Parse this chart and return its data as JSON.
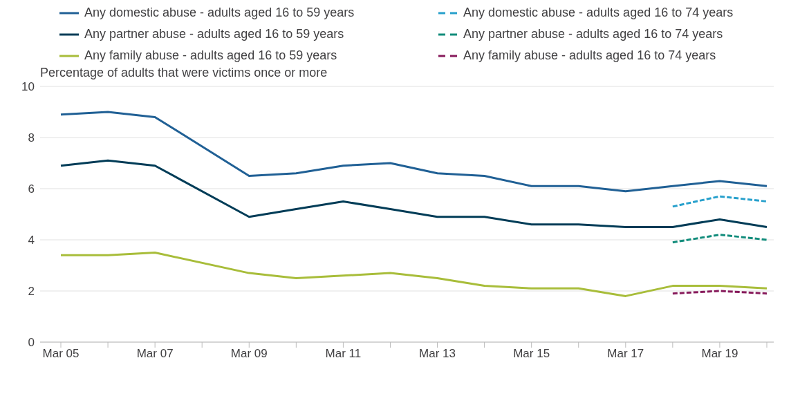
{
  "chart_data": {
    "type": "line",
    "ylabel": "Percentage of adults that were victims once or more",
    "categories": [
      "Mar 05",
      null,
      "Mar 07",
      null,
      "Mar 09",
      null,
      "Mar 11",
      null,
      "Mar 13",
      null,
      "Mar 15",
      null,
      "Mar 17",
      null,
      "Mar 19",
      null
    ],
    "series": [
      {
        "name": "Any domestic abuse - adults aged 16 to 59 years",
        "color": "#206095",
        "values": [
          8.9,
          9.0,
          8.8,
          null,
          6.5,
          6.6,
          6.9,
          7.0,
          6.6,
          6.5,
          6.1,
          6.1,
          5.9,
          6.1,
          6.3,
          6.1
        ]
      },
      {
        "name": "Any domestic abuse - adults aged 16 to 74 years",
        "color": "#27a0cc",
        "line_style": "dashed",
        "values": [
          null,
          null,
          null,
          null,
          null,
          null,
          null,
          null,
          null,
          null,
          null,
          null,
          null,
          5.3,
          5.7,
          5.5
        ]
      },
      {
        "name": "Any partner abuse - adults aged 16 to 59 years",
        "color": "#003c57",
        "values": [
          6.9,
          7.1,
          6.9,
          null,
          4.9,
          5.2,
          5.5,
          5.2,
          4.9,
          4.9,
          4.6,
          4.6,
          4.5,
          4.5,
          4.8,
          4.5
        ]
      },
      {
        "name": "Any partner abuse - adults aged 16 to 74 years",
        "color": "#118c7b",
        "line_style": "dashed",
        "values": [
          null,
          null,
          null,
          null,
          null,
          null,
          null,
          null,
          null,
          null,
          null,
          null,
          null,
          3.9,
          4.2,
          4.0
        ]
      },
      {
        "name": "Any family abuse - adults aged 16 to 59 years",
        "color": "#a8bd3a",
        "values": [
          3.4,
          3.4,
          3.5,
          null,
          2.7,
          2.5,
          2.6,
          2.7,
          2.5,
          2.2,
          2.1,
          2.1,
          1.8,
          2.2,
          2.2,
          2.1
        ]
      },
      {
        "name": "Any family abuse - adults aged 16 to 74 years",
        "color": "#871a5b",
        "line_style": "dashed",
        "values": [
          null,
          null,
          null,
          null,
          null,
          null,
          null,
          null,
          null,
          null,
          null,
          null,
          null,
          1.9,
          2.0,
          1.9
        ]
      }
    ],
    "ylim": [
      0,
      10
    ],
    "yticks": [
      0,
      2,
      4,
      6,
      8,
      10
    ],
    "grid": "y",
    "legend": "top"
  }
}
